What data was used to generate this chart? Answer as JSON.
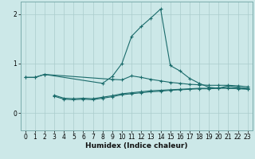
{
  "title": "",
  "xlabel": "Humidex (Indice chaleur)",
  "ylabel": "",
  "background_color": "#cce8e8",
  "grid_color": "#aacccc",
  "line_color": "#1a6b6b",
  "x_ticks": [
    0,
    1,
    2,
    3,
    4,
    5,
    6,
    7,
    8,
    9,
    10,
    11,
    12,
    13,
    14,
    15,
    16,
    17,
    18,
    19,
    20,
    21,
    22,
    23
  ],
  "y_ticks": [
    0,
    1,
    2
  ],
  "xlim": [
    -0.5,
    23.5
  ],
  "ylim": [
    -0.35,
    2.25
  ],
  "series": [
    {
      "x": [
        0,
        1,
        2,
        9,
        10,
        11,
        12,
        13,
        14,
        15,
        16,
        17,
        18,
        19,
        20,
        21,
        22,
        23
      ],
      "y": [
        0.72,
        0.72,
        0.78,
        0.68,
        0.67,
        0.75,
        0.72,
        0.68,
        0.65,
        0.62,
        0.6,
        0.58,
        0.57,
        0.56,
        0.56,
        0.56,
        0.55,
        0.53
      ]
    },
    {
      "x": [
        0,
        1,
        2,
        8,
        9,
        10,
        11,
        12,
        13,
        14,
        15,
        16,
        17,
        18,
        19,
        20,
        21,
        22,
        23
      ],
      "y": [
        0.72,
        0.72,
        0.78,
        0.6,
        0.74,
        1.0,
        1.55,
        1.75,
        1.92,
        2.1,
        0.96,
        0.85,
        0.7,
        0.6,
        0.52,
        0.5,
        0.55,
        0.52,
        0.5
      ]
    },
    {
      "x": [
        3,
        4,
        5,
        6,
        7,
        8,
        9,
        10,
        11,
        12,
        13,
        14,
        15,
        16,
        17,
        18,
        19,
        20,
        21,
        22,
        23
      ],
      "y": [
        0.34,
        0.28,
        0.27,
        0.28,
        0.27,
        0.3,
        0.33,
        0.37,
        0.39,
        0.41,
        0.43,
        0.44,
        0.46,
        0.47,
        0.48,
        0.49,
        0.49,
        0.5,
        0.5,
        0.49,
        0.48
      ]
    },
    {
      "x": [
        3,
        4,
        5,
        6,
        7,
        8,
        9,
        10,
        11,
        12,
        13,
        14,
        15,
        16,
        17,
        18,
        19,
        20,
        21,
        22,
        23
      ],
      "y": [
        0.36,
        0.3,
        0.29,
        0.3,
        0.29,
        0.32,
        0.35,
        0.39,
        0.41,
        0.43,
        0.45,
        0.46,
        0.47,
        0.48,
        0.49,
        0.5,
        0.5,
        0.51,
        0.51,
        0.5,
        0.49
      ]
    }
  ],
  "marker": "+",
  "markersize": 3,
  "linewidth": 0.8,
  "tick_fontsize": 5.5,
  "xlabel_fontsize": 6.5
}
